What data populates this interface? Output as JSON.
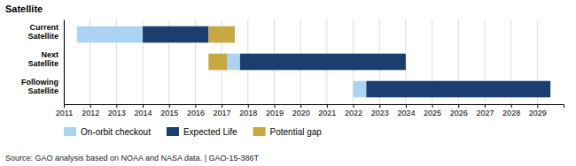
{
  "chart_data": {
    "type": "bar",
    "orientation": "horizontal",
    "title": "Satellite",
    "categories": [
      "Current\nSatellite",
      "Next\nSatellite",
      "Following\nSatellite"
    ],
    "series": [
      {
        "name": "On-orbit checkout",
        "color": "#aad4f0",
        "values": [
          [
            2011.5,
            2014.0
          ],
          [
            2017.2,
            2017.7
          ],
          [
            2022.0,
            2022.5
          ]
        ]
      },
      {
        "name": "Expected Life",
        "color": "#1a3f6f",
        "values": [
          [
            2014.0,
            2016.5
          ],
          [
            2017.7,
            2024.0
          ],
          [
            2022.5,
            2029.5
          ]
        ]
      },
      {
        "name": "Potential gap",
        "color": "#c8a840",
        "values": [
          [
            2016.5,
            2017.5
          ],
          [
            2016.5,
            2017.2
          ],
          null
        ]
      }
    ],
    "xlim": [
      2011,
      2030
    ],
    "xticks": [
      2011,
      2012,
      2013,
      2014,
      2015,
      2016,
      2017,
      2018,
      2019,
      2020,
      2021,
      2022,
      2023,
      2024,
      2025,
      2026,
      2027,
      2028,
      2029
    ],
    "grid": true,
    "legend": "bottom",
    "annotations": [
      "Source: GAO analysis based on NOAA and NASA data.  |  GAO-15-386T"
    ]
  }
}
